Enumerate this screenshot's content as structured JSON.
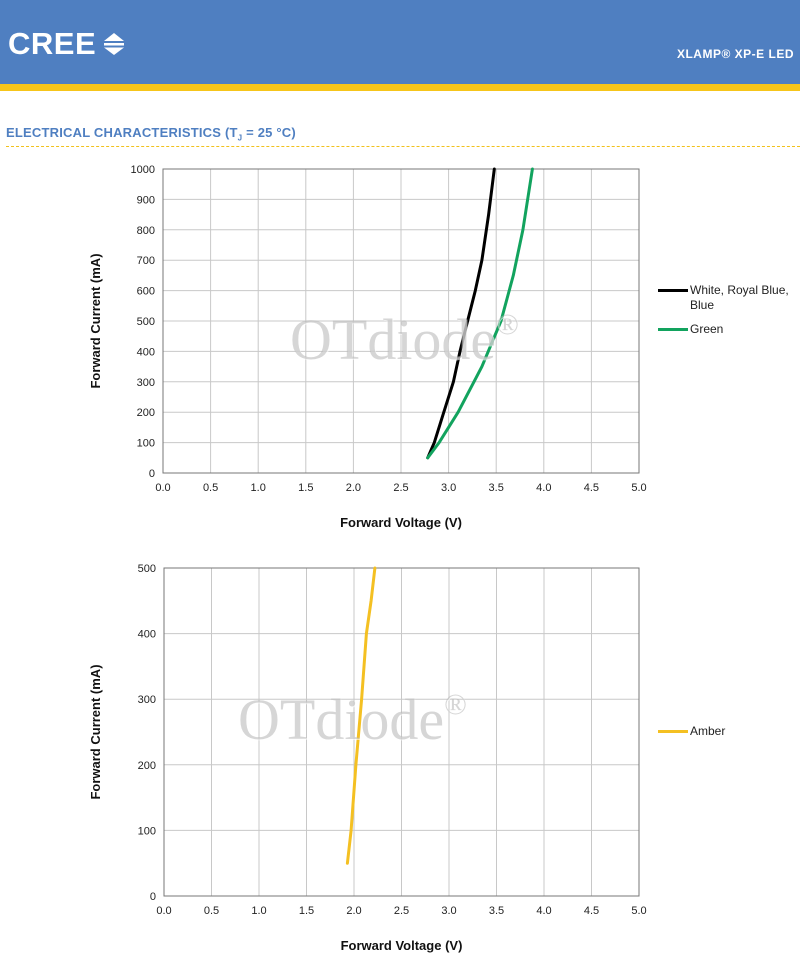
{
  "header": {
    "brand": "CREE",
    "product": "XLAMP® XP-E LED",
    "colors": {
      "primary": "#4f7fc1",
      "accent": "#f6c51a"
    }
  },
  "section": {
    "title_main": "ELECTRICAL CHARACTERISTICS (T",
    "title_sub": "J",
    "title_rest": " = 25 °C)"
  },
  "watermark": {
    "text": "OTdiode",
    "mark": "®"
  },
  "chart_data": [
    {
      "type": "line",
      "xlabel": "Forward Voltage (V)",
      "ylabel": "Forward Current (mA)",
      "xlim": [
        0,
        5
      ],
      "ylim": [
        0,
        1000
      ],
      "xticks": [
        "0.0",
        "0.5",
        "1.0",
        "1.5",
        "2.0",
        "2.5",
        "3.0",
        "3.5",
        "4.0",
        "4.5",
        "5.0"
      ],
      "yticks": [
        "0",
        "100",
        "200",
        "300",
        "400",
        "500",
        "600",
        "700",
        "800",
        "900",
        "1000"
      ],
      "grid": true,
      "legend": "right",
      "series": [
        {
          "name": "White, Royal Blue, Blue",
          "color": "#000000",
          "x": [
            2.78,
            2.85,
            2.95,
            3.05,
            3.12,
            3.2,
            3.28,
            3.35,
            3.42,
            3.48
          ],
          "y": [
            50,
            100,
            200,
            300,
            400,
            500,
            600,
            700,
            850,
            1000
          ]
        },
        {
          "name": "Green",
          "color": "#12a35e",
          "x": [
            2.78,
            2.9,
            3.1,
            3.35,
            3.55,
            3.68,
            3.78,
            3.88
          ],
          "y": [
            50,
            100,
            200,
            350,
            500,
            650,
            800,
            1000
          ]
        }
      ]
    },
    {
      "type": "line",
      "xlabel": "Forward Voltage (V)",
      "ylabel": "Forward Current (mA)",
      "xlim": [
        0,
        5
      ],
      "ylim": [
        0,
        500
      ],
      "xticks": [
        "0.0",
        "0.5",
        "1.0",
        "1.5",
        "2.0",
        "2.5",
        "3.0",
        "3.5",
        "4.0",
        "4.5",
        "5.0"
      ],
      "yticks": [
        "0",
        "100",
        "200",
        "300",
        "400",
        "500"
      ],
      "grid": true,
      "legend": "right",
      "series": [
        {
          "name": "Amber",
          "color": "#f4c022",
          "x": [
            1.93,
            1.97,
            2.02,
            2.08,
            2.13,
            2.18,
            2.22
          ],
          "y": [
            50,
            100,
            200,
            300,
            400,
            450,
            500
          ]
        }
      ]
    }
  ]
}
